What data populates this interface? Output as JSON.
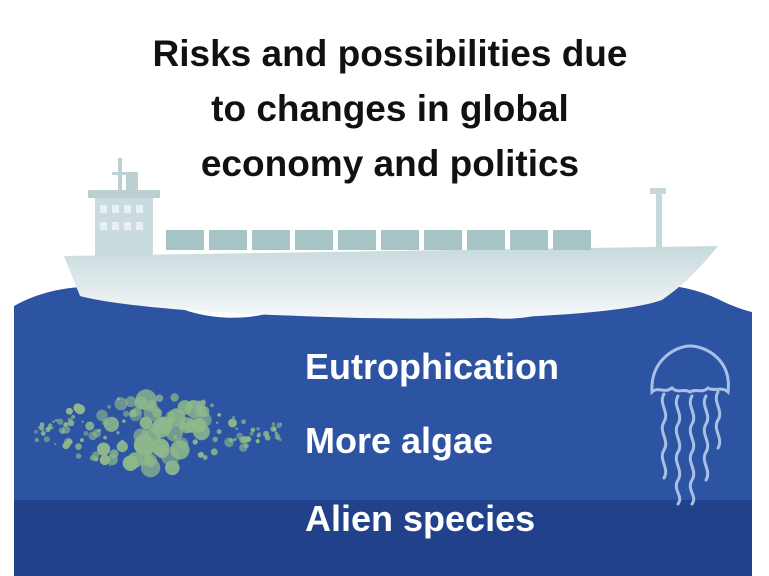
{
  "title_lines": [
    "Risks and possibilities due",
    "to changes in global",
    "economy and politics"
  ],
  "water_labels": [
    "Eutrophication",
    "More algae",
    "Alien species"
  ],
  "colors": {
    "sea_upper": "#2d54a3",
    "sea_lower": "#21428a",
    "ship": "#dde8ea",
    "containers": "#a6c4c6",
    "algae": "#8fb88b",
    "jellyfish": "#a9bfe6",
    "text_dark": "#111111",
    "text_light": "#ffffff"
  },
  "icons": [
    "cargo-ship-icon",
    "wave-icon",
    "algae-bubbles-icon",
    "jellyfish-icon"
  ]
}
